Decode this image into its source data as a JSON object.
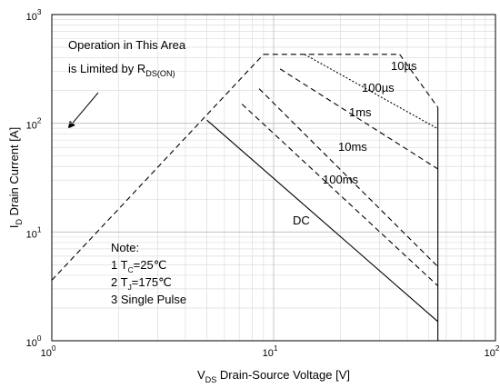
{
  "chart_data": {
    "type": "line",
    "xlabel": {
      "main": "V",
      "sub": "DS",
      "rest": " Drain-Source Voltage [V]"
    },
    "ylabel": {
      "main": "I",
      "sub": "D",
      "rest": " Drain Current [A]"
    },
    "xscale": "log",
    "yscale": "log",
    "xlim": [
      1,
      100
    ],
    "ylim": [
      1,
      1000
    ],
    "xticks": [
      {
        "value": 1,
        "label": "10",
        "power": "0"
      },
      {
        "value": 10,
        "label": "10",
        "power": "1"
      },
      {
        "value": 100,
        "label": "10",
        "power": "2"
      }
    ],
    "yticks": [
      {
        "value": 1,
        "label": "10",
        "power": "0"
      },
      {
        "value": 10,
        "label": "10",
        "power": "1"
      },
      {
        "value": 100,
        "label": "10",
        "power": "2"
      },
      {
        "value": 1000,
        "label": "10",
        "power": "3"
      }
    ],
    "grid": true,
    "minor_grid": true,
    "series": [
      {
        "x": [
          1,
          9
        ],
        "values": [
          3.6,
          430
        ],
        "color": "#000",
        "dash": "dashed"
      },
      {
        "x": [
          9,
          37
        ],
        "values": [
          430,
          430
        ],
        "color": "#000",
        "dash": "dashed"
      },
      {
        "name": "10µs",
        "x": [
          37,
          55
        ],
        "values": [
          430,
          140
        ],
        "color": "#000",
        "dash": "dashed"
      },
      {
        "name": "100µs",
        "x": [
          13.8,
          55
        ],
        "values": [
          430,
          89
        ],
        "color": "#000",
        "dash": "dotted"
      },
      {
        "name": "1ms",
        "x": [
          10.7,
          55
        ],
        "values": [
          316,
          38
        ],
        "color": "#000",
        "dash": "dashed"
      },
      {
        "name": "10ms",
        "x": [
          8.6,
          55
        ],
        "values": [
          208,
          4.8
        ],
        "color": "#000",
        "dash": "dashed"
      },
      {
        "name": "100ms",
        "x": [
          7.2,
          55
        ],
        "values": [
          150,
          3.2
        ],
        "color": "#000",
        "dash": "dashed"
      },
      {
        "name": "DC",
        "x": [
          5,
          55
        ],
        "values": [
          107,
          1.5
        ],
        "color": "#000",
        "dash": "solid"
      },
      {
        "x": [
          55,
          55
        ],
        "values": [
          140,
          1
        ],
        "color": "#000",
        "dash": "solid"
      }
    ],
    "annotations": [
      {
        "text": "Operation in This Area"
      },
      {
        "text": "is Limited by R",
        "sub": "DS(ON)"
      }
    ],
    "notes": [
      {
        "text": "Note:"
      },
      {
        "text": "1 T",
        "sub": "C",
        "rest": "=25℃"
      },
      {
        "text": "2 T",
        "sub": "J",
        "rest": "=175℃"
      },
      {
        "text": "3 Single Pulse"
      }
    ]
  }
}
